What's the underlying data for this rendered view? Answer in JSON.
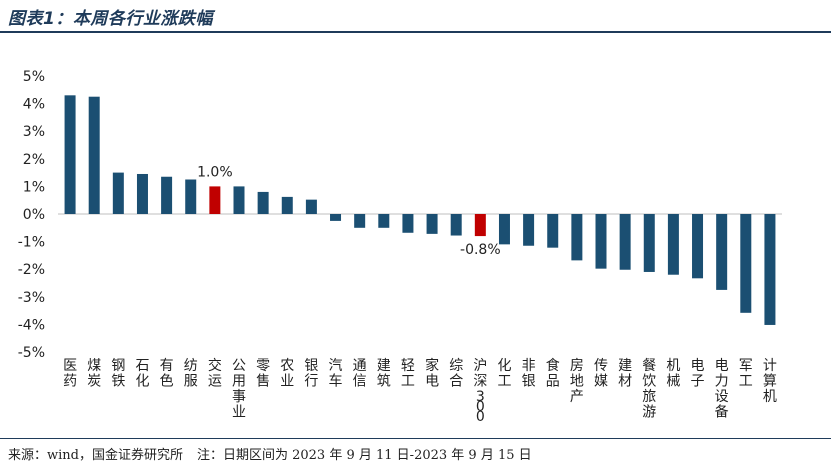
{
  "header": {
    "title": "图表1：本周各行业涨跌幅"
  },
  "footer": {
    "source": "来源：wind，国金证券研究所",
    "note": "注：日期区间为 2023 年 9 月 11 日-2023 年 9 月 15 日"
  },
  "colors": {
    "bar": "#1b4f72",
    "highlight": "#c00000",
    "title": "#1f3b5a"
  },
  "chart_data": {
    "type": "bar",
    "title": "本周各行业涨跌幅",
    "xlabel": "",
    "ylabel": "",
    "ylim": [
      -5,
      5
    ],
    "yticks": [
      5,
      4,
      3,
      2,
      1,
      0,
      -1,
      -2,
      -3,
      -4,
      -5
    ],
    "ytick_labels": [
      "5%",
      "4%",
      "3%",
      "2%",
      "1%",
      "0%",
      "-1%",
      "-2%",
      "-3%",
      "-4%",
      "-5%"
    ],
    "categories": [
      "医药",
      "煤炭",
      "钢铁",
      "石化",
      "有色",
      "纺服",
      "交运",
      "公用事业",
      "零售",
      "农业",
      "银行",
      "汽车",
      "通信",
      "建筑",
      "轻工",
      "家电",
      "综合",
      "沪深300",
      "化工",
      "非银",
      "食品",
      "房地产",
      "传媒",
      "建材",
      "餐饮旅游",
      "机械",
      "电子",
      "电力设备",
      "军工",
      "计算机"
    ],
    "values": [
      4.3,
      4.25,
      1.5,
      1.45,
      1.35,
      1.25,
      1.0,
      1.0,
      0.8,
      0.62,
      0.52,
      -0.25,
      -0.5,
      -0.5,
      -0.68,
      -0.72,
      -0.78,
      -0.8,
      -1.1,
      -1.15,
      -1.22,
      -1.68,
      -1.98,
      -2.02,
      -2.1,
      -2.2,
      -2.33,
      -2.75,
      -3.58,
      -4.02
    ],
    "highlight": [
      "交运",
      "沪深300"
    ],
    "data_labels": [
      {
        "category": "交运",
        "text": "1.0%"
      },
      {
        "category": "沪深300",
        "text": "-0.8%"
      }
    ]
  }
}
